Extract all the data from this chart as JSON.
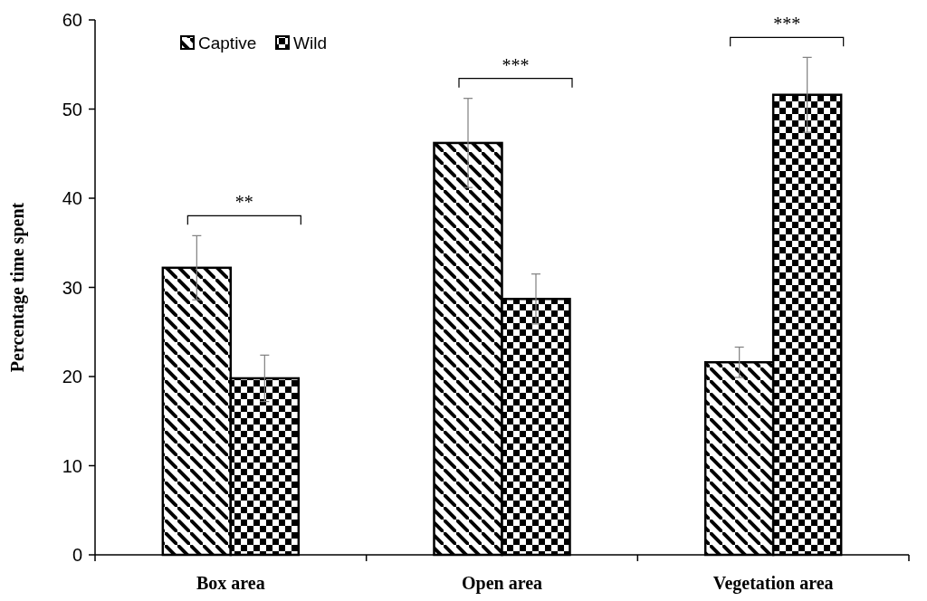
{
  "chart_data": {
    "type": "bar",
    "ylabel": "Percentage time spent",
    "categories": [
      "Box area",
      "Open area",
      "Vegetation area"
    ],
    "series": [
      {
        "name": "Captive",
        "color": "#000000",
        "values": [
          32.2,
          46.2,
          21.6
        ],
        "errors": [
          3.6,
          5,
          1.7
        ]
      },
      {
        "name": "Wild",
        "color": "#000000",
        "values": [
          19.8,
          28.7,
          51.6
        ],
        "errors": [
          2.6,
          2.8,
          4.2
        ]
      }
    ],
    "ylim": [
      0,
      60
    ],
    "yticks": [
      0,
      10,
      20,
      30,
      40,
      50,
      60
    ],
    "grid": false,
    "legend": "top left",
    "annotations": [
      "**",
      "***",
      "***"
    ]
  }
}
